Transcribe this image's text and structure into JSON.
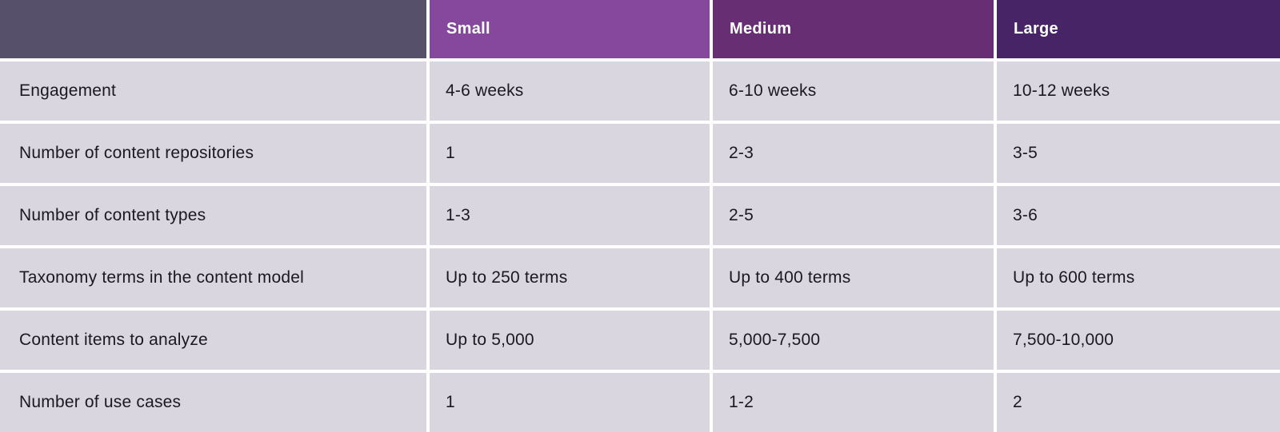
{
  "table": {
    "corner_label": "",
    "columns": [
      {
        "label": "Small"
      },
      {
        "label": "Medium"
      },
      {
        "label": "Large"
      }
    ],
    "rows": [
      {
        "label": "Engagement",
        "values": [
          "4-6 weeks",
          "6-10 weeks",
          "10-12 weeks"
        ]
      },
      {
        "label": "Number of content repositories",
        "values": [
          "1",
          "2-3",
          "3-5"
        ]
      },
      {
        "label": "Number of content types",
        "values": [
          "1-3",
          "2-5",
          "3-6"
        ]
      },
      {
        "label": "Taxonomy terms in the content model",
        "values": [
          "Up to 250 terms",
          "Up to 400 terms",
          "Up to 600 terms"
        ]
      },
      {
        "label": "Content items to analyze",
        "values": [
          "Up to 5,000",
          "5,000-7,500",
          "7,500-10,000"
        ]
      },
      {
        "label": "Number of use cases",
        "values": [
          "1",
          "1-2",
          "2"
        ]
      }
    ]
  },
  "colors": {
    "header-corner": "#57506a",
    "header-small": "#86489d",
    "header-medium": "#672e74",
    "header-large": "#472466",
    "row-bg": "#d9d6e0",
    "text-dark": "#1b181f",
    "separator": "#ffffff"
  }
}
